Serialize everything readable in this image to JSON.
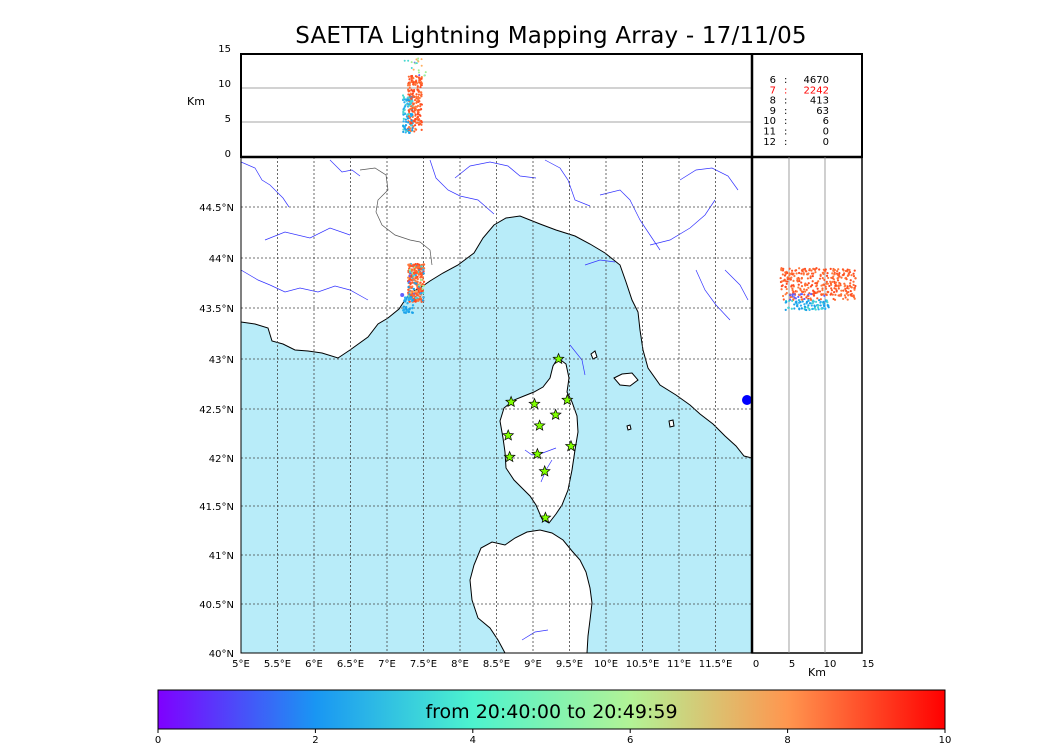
{
  "title": "SAETTA Lightning Mapping Array - 17/11/05",
  "altitude_panel": {
    "unit_label": "Km",
    "ticks": [
      "15",
      "10",
      "5",
      "0"
    ]
  },
  "map": {
    "lon_ticks": [
      "5°E",
      "5.5°E",
      "6°E",
      "6.5°E",
      "7°E",
      "7.5°E",
      "8°E",
      "8.5°E",
      "9°E",
      "9.5°E",
      "10°E",
      "10.5°E",
      "11°E",
      "11.5°E"
    ],
    "lat_ticks": [
      "44.5°N",
      "44°N",
      "43.5°N",
      "43°N",
      "42.5°N",
      "42°N",
      "41.5°N",
      "41°N",
      "40.5°N",
      "40°N"
    ],
    "sea_color": "#b8ecf9",
    "land_color": "#ffffff",
    "river_color": "#3333ff",
    "station_color": "#80ff00",
    "stations": [
      {
        "lon": 9.35,
        "lat": 43.0
      },
      {
        "lon": 8.7,
        "lat": 42.57
      },
      {
        "lon": 9.02,
        "lat": 42.55
      },
      {
        "lon": 9.47,
        "lat": 42.59
      },
      {
        "lon": 9.09,
        "lat": 42.33
      },
      {
        "lon": 9.31,
        "lat": 42.44
      },
      {
        "lon": 8.66,
        "lat": 42.23
      },
      {
        "lon": 8.68,
        "lat": 42.01
      },
      {
        "lon": 9.06,
        "lat": 42.04
      },
      {
        "lon": 9.52,
        "lat": 42.12
      },
      {
        "lon": 9.16,
        "lat": 41.86
      },
      {
        "lon": 9.17,
        "lat": 41.38
      }
    ],
    "lightning_cluster": {
      "lon": 7.4,
      "lat": 43.75
    }
  },
  "side_panel": {
    "unit_label": "Km",
    "ticks": [
      "0",
      "5",
      "10",
      "15"
    ]
  },
  "counts": [
    {
      "label": "6",
      "value": "4670",
      "color": "#000000"
    },
    {
      "label": "7",
      "value": "2242",
      "color": "#ff0000"
    },
    {
      "label": "8",
      "value": "413",
      "color": "#000000"
    },
    {
      "label": "9",
      "value": "63",
      "color": "#000000"
    },
    {
      "label": "10",
      "value": "6",
      "color": "#000000"
    },
    {
      "label": "11",
      "value": "0",
      "color": "#000000"
    },
    {
      "label": "12",
      "value": "0",
      "color": "#000000"
    }
  ],
  "colorbar": {
    "label": "from 20:40:00 to 20:49:59",
    "ticks": [
      "0",
      "2",
      "4",
      "6",
      "8",
      "10"
    ],
    "colors": [
      "#7f00ff",
      "#1996f3",
      "#4df3ce",
      "#b2f396",
      "#ff964f",
      "#ff0000"
    ]
  }
}
